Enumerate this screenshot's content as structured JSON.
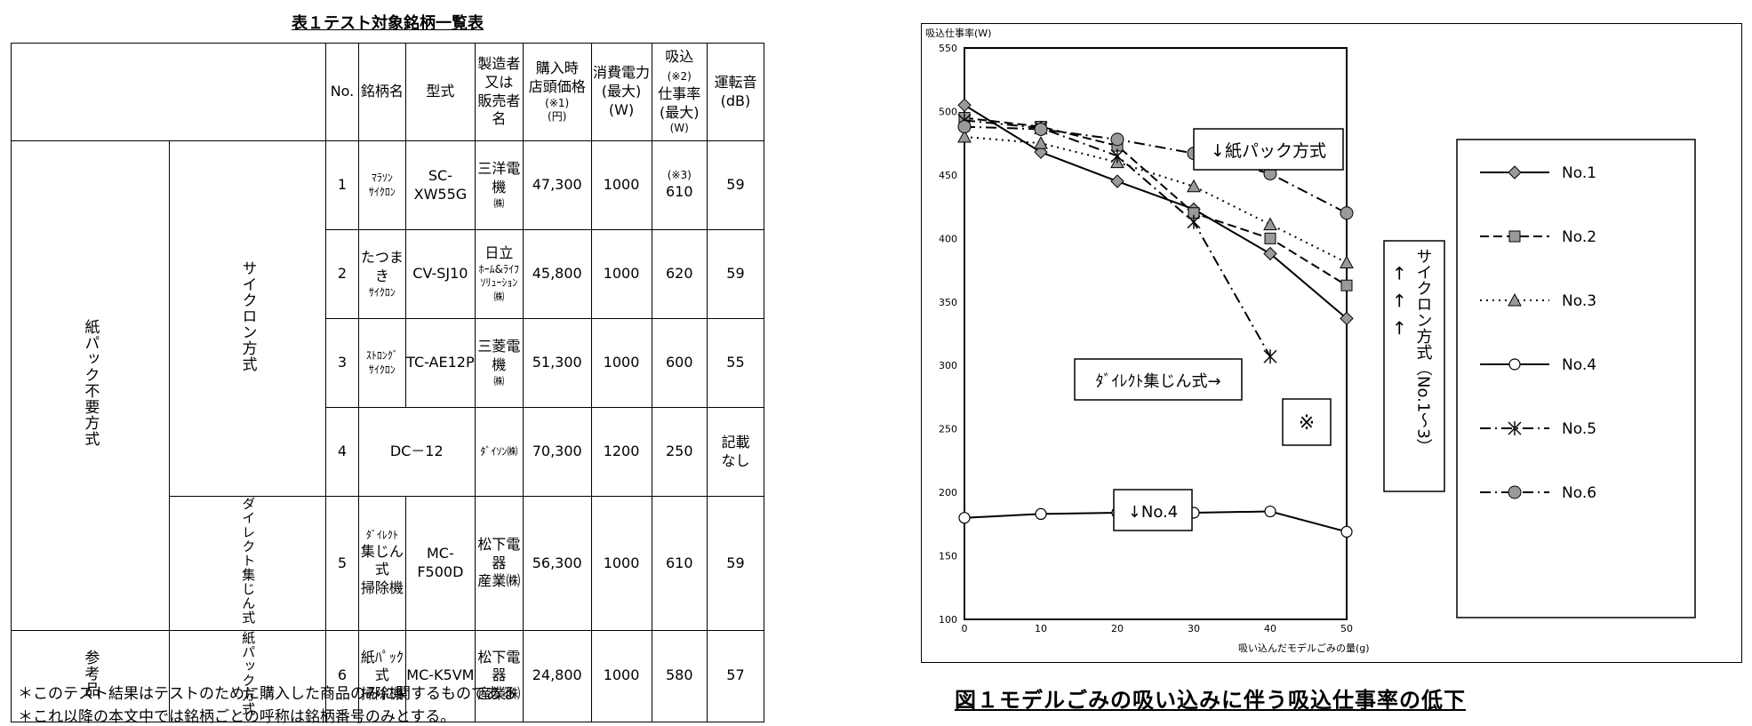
{
  "table": {
    "title": "表１テスト対象銘柄一覧表",
    "headers": {
      "no": "No.",
      "name": "銘柄名",
      "model": "型式",
      "maker": [
        "製造者",
        "又は",
        "販売者名"
      ],
      "price": [
        "購入時",
        "店頭価格",
        "(※1)",
        "(円)"
      ],
      "power": [
        "消費電力",
        "(最大)",
        "(W)"
      ],
      "suction": [
        "吸込",
        "(※2)",
        "仕事率",
        "(最大)",
        "(W)"
      ],
      "noise": [
        "運転音",
        "(dB)"
      ]
    },
    "groups": {
      "bagless": "紙パック不要方式",
      "cyclone": "サイクロン方式",
      "direct": "ダイレクト集じん式",
      "reference": "参考品",
      "paperbag": "紙パック方式"
    },
    "rows": [
      {
        "no": "1",
        "name": [
          "ﾏﾗｿﾝ",
          "ｻｲｸﾛﾝ"
        ],
        "model": "SC-XW55G",
        "maker": [
          "三洋電機",
          "㈱"
        ],
        "price": "47,300",
        "power": "1000",
        "suction_note": "(※3)",
        "suction": "610",
        "noise": "59"
      },
      {
        "no": "2",
        "name": [
          "たつまき",
          "ｻｲｸﾛﾝ"
        ],
        "model": "CV-SJ10",
        "maker": [
          "日立",
          "ﾎｰﾑ&ﾗｲﾌ",
          "ｿﾘｭｰｼｮﾝ",
          "㈱"
        ],
        "price": "45,800",
        "power": "1000",
        "suction": "620",
        "noise": "59"
      },
      {
        "no": "3",
        "name": [
          "ｽﾄﾛﾝｸﾞ",
          "ｻｲｸﾛﾝ"
        ],
        "model": "TC-AE12P",
        "maker": [
          "三菱電機",
          "㈱"
        ],
        "price": "51,300",
        "power": "1000",
        "suction": "600",
        "noise": "55"
      },
      {
        "no": "4",
        "model": "DC－12",
        "maker": [
          "ﾀﾞｲｿﾝ㈱"
        ],
        "price": "70,300",
        "power": "1200",
        "suction": "250",
        "noise": [
          "記載",
          "なし"
        ]
      },
      {
        "no": "5",
        "name": [
          "ﾀﾞｲﾚｸﾄ",
          "集じん式",
          "掃除機"
        ],
        "model": "MC-F500D",
        "maker": [
          "松下電器",
          "産業㈱"
        ],
        "price": "56,300",
        "power": "1000",
        "suction": "610",
        "noise": "59"
      },
      {
        "no": "6",
        "name": [
          "紙ﾊﾟｯｸ式",
          "掃除機"
        ],
        "model": "MC-K5VM",
        "maker": [
          "松下電器",
          "産業㈱"
        ],
        "price": "24,800",
        "power": "1000",
        "suction": "580",
        "noise": "57"
      }
    ],
    "notes": [
      "＊このテスト結果はテストのために購入した商品のみに関するものである",
      "＊これ以降の本文中では銘柄ごとの呼称は銘柄番号のみとする。"
    ]
  },
  "figure": {
    "title": "図１モデルごみの吸い込みに伴う吸込仕事率の低下",
    "annotations": {
      "paperbag": "↓紙パック方式",
      "direct": "ﾀﾞｲﾚｸﾄ集じん式→",
      "mark": "※",
      "no4": "↓No.4",
      "cyclone": "サイクロン方式（No.1〜3）",
      "cyclone_arrows": "←←←"
    }
  },
  "chart_data": {
    "type": "line",
    "title": "",
    "xlabel": "吸い込んだモデルごみの量(g)",
    "ylabel": "吸込仕事率(W)",
    "xlim": [
      0,
      50
    ],
    "ylim": [
      100,
      550
    ],
    "xticks": [
      0,
      10,
      20,
      30,
      40,
      50
    ],
    "yticks": [
      100,
      150,
      200,
      250,
      300,
      350,
      400,
      450,
      500,
      550
    ],
    "grid": "horizontal",
    "legend": "right",
    "series": [
      {
        "name": "No.1",
        "x": [
          0,
          10,
          20,
          30,
          40,
          50
        ],
        "values": [
          505,
          468,
          445,
          423,
          388,
          337
        ],
        "marker": "diamond",
        "line": "solid"
      },
      {
        "name": "No.2",
        "x": [
          0,
          10,
          20,
          30,
          40,
          50
        ],
        "values": [
          495,
          488,
          473,
          420,
          400,
          363
        ],
        "marker": "square",
        "line": "dashed"
      },
      {
        "name": "No.3",
        "x": [
          0,
          10,
          20,
          30,
          40,
          50
        ],
        "values": [
          480,
          475,
          460,
          441,
          411,
          381
        ],
        "marker": "triangle",
        "line": "dotted"
      },
      {
        "name": "No.4",
        "x": [
          0,
          10,
          20,
          30,
          40,
          50
        ],
        "values": [
          180,
          183,
          184,
          184,
          185,
          169
        ],
        "marker": "circle-open",
        "line": "solid"
      },
      {
        "name": "No.5",
        "x": [
          0,
          10,
          20,
          30,
          40
        ],
        "values": [
          493,
          487,
          465,
          413,
          307
        ],
        "marker": "asterisk",
        "line": "dashdot"
      },
      {
        "name": "No.6",
        "x": [
          0,
          10,
          20,
          30,
          40,
          50
        ],
        "values": [
          488,
          486,
          478,
          467,
          451,
          420
        ],
        "marker": "circle",
        "line": "dashdot"
      }
    ]
  }
}
